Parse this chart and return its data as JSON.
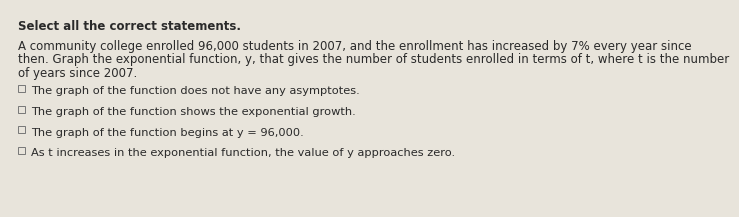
{
  "title": "Select all the correct statements.",
  "paragraph_line1": "A community college enrolled 96,000 students in 2007, and the enrollment has increased by 7% every year since",
  "paragraph_line2": "then. Graph the exponential function, y, that gives the number of students enrolled in terms of t, where t is the number",
  "paragraph_line3": "of years since 2007.",
  "options": [
    "The graph of the function does not have any asymptotes.",
    "The graph of the function shows the exponential growth.",
    "The graph of the function begins at y = 96,000.",
    "As t increases in the exponential function, the value of y approaches zero."
  ],
  "background_color": "#e8e4db",
  "text_color": "#2a2a2a",
  "title_fontsize": 8.5,
  "paragraph_fontsize": 8.5,
  "option_fontsize": 8.2,
  "fig_width": 6.26,
  "fig_height": 1.97
}
